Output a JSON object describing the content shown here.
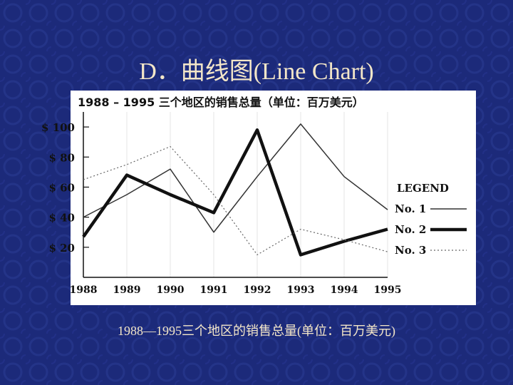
{
  "slide": {
    "title": "D．曲线图(Line Chart)",
    "caption": "1988—1995三个地区的销售总量(单位：百万美元)"
  },
  "colors": {
    "background": "#1c2a7a",
    "text": "#f3e6c8",
    "card": "#ffffff",
    "ink": "#111111"
  },
  "chart_data": {
    "type": "line",
    "title": "1988 – 1995 三个地区的销售总量（单位：百万美元）",
    "x": [
      "1988",
      "1989",
      "1990",
      "1991",
      "1992",
      "1993",
      "1994",
      "1995"
    ],
    "y_ticks": [
      {
        "value": 100,
        "label": "$ 100"
      },
      {
        "value": 80,
        "label": "$ 80"
      },
      {
        "value": 60,
        "label": "$ 60"
      },
      {
        "value": 40,
        "label": "$ 40"
      },
      {
        "value": 20,
        "label": "$ 20"
      }
    ],
    "ylim": [
      0,
      110
    ],
    "legend_title": "LEGEND",
    "legend_position": "right",
    "grid": true,
    "series": [
      {
        "name": "No. 1",
        "style": "thin",
        "values": [
          40,
          55,
          72,
          30,
          67,
          102,
          67,
          45
        ]
      },
      {
        "name": "No. 2",
        "style": "thick",
        "values": [
          27,
          68,
          55,
          43,
          98,
          15,
          24,
          32
        ]
      },
      {
        "name": "No. 3",
        "style": "dotted",
        "values": [
          65,
          75,
          87,
          55,
          15,
          32,
          25,
          17
        ]
      }
    ]
  }
}
